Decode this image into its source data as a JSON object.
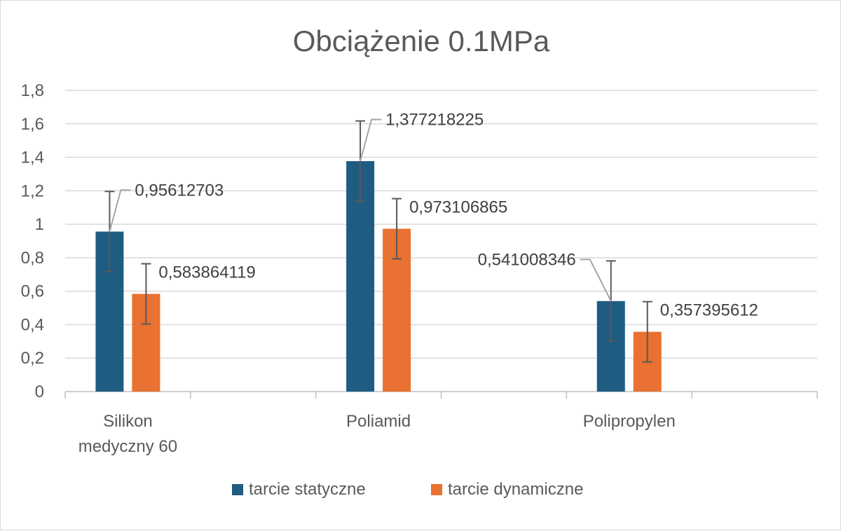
{
  "chart_data": {
    "type": "bar",
    "title": "Obciążenie  0.1MPa",
    "categories": [
      "Silikon medyczny 60",
      "Poliamid",
      "Polipropylen"
    ],
    "category_lines": [
      [
        "Silikon",
        "medyczny 60"
      ],
      [
        "Poliamid"
      ],
      [
        "Polipropylen"
      ]
    ],
    "series": [
      {
        "name": "tarcie statyczne",
        "color": "#1f5c82",
        "values": [
          0.95612703,
          1.377218225,
          0.541008346
        ],
        "labels": [
          "0,95612703",
          "1,377218225",
          "0,541008346"
        ],
        "error": [
          0.24,
          0.24,
          0.24
        ]
      },
      {
        "name": "tarcie dynamiczne",
        "color": "#e97132",
        "values": [
          0.583864119,
          0.973106865,
          0.357395612
        ],
        "labels": [
          "0,583864119",
          "0,973106865",
          "0,357395612"
        ],
        "error": [
          0.18,
          0.18,
          0.18
        ]
      }
    ],
    "ylim": [
      0,
      1.8
    ],
    "yticks": [
      0,
      0.2,
      0.4,
      0.6,
      0.8,
      1,
      1.2,
      1.4,
      1.6,
      1.8
    ],
    "ytick_labels": [
      "0",
      "0,2",
      "0,4",
      "0,6",
      "0,8",
      "1",
      "1,2",
      "1,4",
      "1,6",
      "1,8"
    ],
    "xlabel": "",
    "ylabel": "",
    "grid": true,
    "legend": "bottom"
  }
}
